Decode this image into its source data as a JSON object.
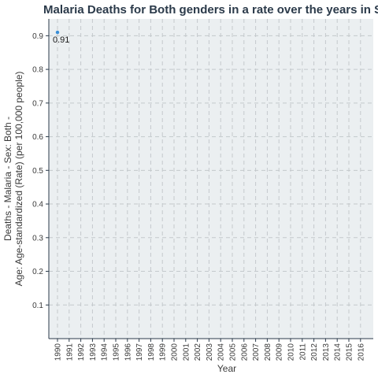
{
  "chart_data": {
    "type": "scatter",
    "title": "Malaria Deaths for Both genders in a rate over the years in S",
    "xlabel": "Year",
    "ylabel_lines": [
      "Deaths - Malaria - Sex: Both -",
      "Age: Age-standardized (Rate) (per 100,000 people)"
    ],
    "x_categories": [
      "1990",
      "1991",
      "1992",
      "1993",
      "1994",
      "1995",
      "1996",
      "1997",
      "1998",
      "1999",
      "2000",
      "2001",
      "2002",
      "2003",
      "2004",
      "2005",
      "2006",
      "2007",
      "2008",
      "2009",
      "2010",
      "2011",
      "2012",
      "2013",
      "2014",
      "2015",
      "2016"
    ],
    "y_ticks": [
      "0.1",
      "0.2",
      "0.3",
      "0.4",
      "0.5",
      "0.6",
      "0.7",
      "0.8",
      "0.9"
    ],
    "ylim": [
      0,
      0.95
    ],
    "grid": true,
    "point_color": "#3a8fd8",
    "series": [
      {
        "points": [
          {
            "x": "1990",
            "y": 0.91,
            "label": "0.91"
          }
        ]
      }
    ]
  }
}
